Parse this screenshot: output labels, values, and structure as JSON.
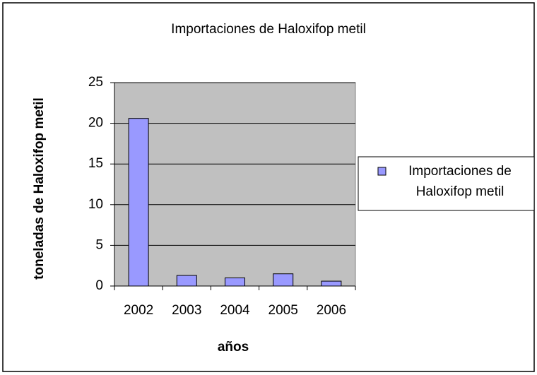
{
  "chart_data": {
    "type": "bar",
    "title": "Importaciones de Haloxifop metil",
    "x_label": "años",
    "y_label": "toneladas de Haloxifop metil",
    "categories": [
      "2002",
      "2003",
      "2004",
      "2005",
      "2006"
    ],
    "series": [
      {
        "name": "Importaciones de Haloxifop metil",
        "color": "#9999ff",
        "values": [
          20.6,
          1.3,
          1.0,
          1.5,
          0.6
        ]
      }
    ],
    "ylim": [
      0,
      25
    ],
    "yticks": [
      0,
      5,
      10,
      15,
      20,
      25
    ],
    "grid": true,
    "legend": "right"
  }
}
